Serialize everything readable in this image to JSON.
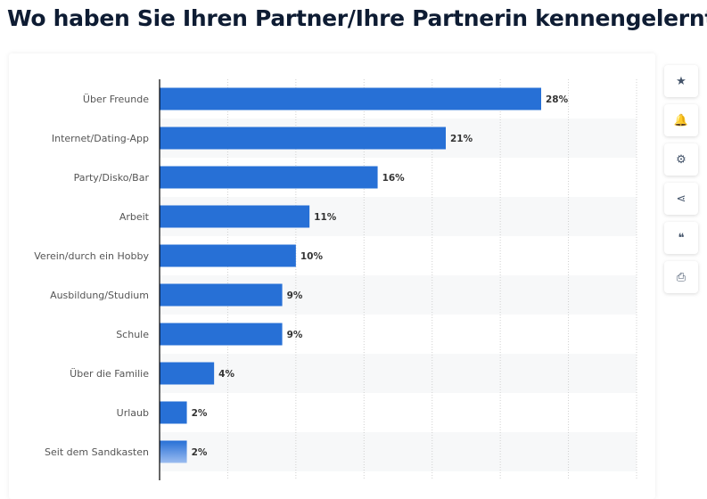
{
  "title": "Wo haben Sie Ihren Partner/Ihre Partnerin kennengelernt?",
  "toolbar": [
    {
      "icon": "star-icon",
      "glyph": "★"
    },
    {
      "icon": "bell-icon",
      "glyph": "🔔"
    },
    {
      "icon": "gear-icon",
      "glyph": "⚙"
    },
    {
      "icon": "share-icon",
      "glyph": "⋖"
    },
    {
      "icon": "quote-icon",
      "glyph": "❝"
    },
    {
      "icon": "print-icon",
      "glyph": "⎙"
    }
  ],
  "chart_data": {
    "type": "bar",
    "orientation": "horizontal",
    "categories": [
      "Über Freunde",
      "Internet/Dating-App",
      "Party/Disko/Bar",
      "Arbeit",
      "Verein/durch ein Hobby",
      "Ausbildung/Studium",
      "Schule",
      "Über die Familie",
      "Urlaub",
      "Seit dem Sandkasten"
    ],
    "values": [
      28,
      21,
      16,
      11,
      10,
      9,
      9,
      4,
      2,
      2
    ],
    "labels": [
      "28%",
      "21%",
      "16%",
      "11%",
      "10%",
      "9%",
      "9%",
      "4%",
      "2%",
      "2%"
    ],
    "unit": "%",
    "xlim": [
      0,
      35
    ],
    "grid": true,
    "bar_color": "#2770d6"
  }
}
